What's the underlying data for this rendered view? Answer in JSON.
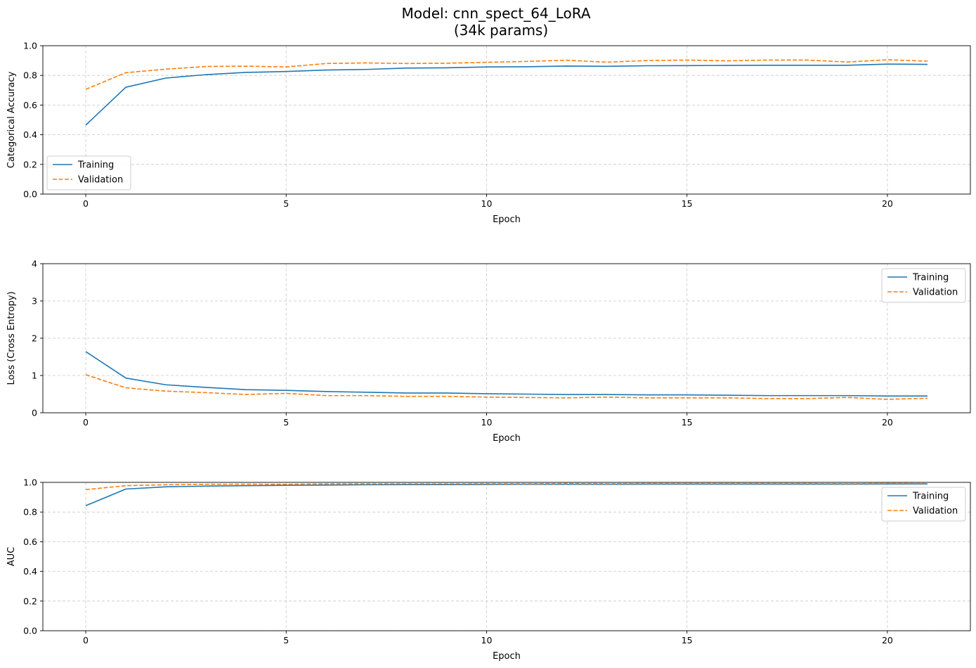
{
  "figure": {
    "title_line1": "Model: cnn_spect_64_LoRA",
    "title_line2": "(34k params)"
  },
  "chart_data": [
    {
      "type": "line",
      "xlabel": "Epoch",
      "ylabel": "Categorical Accuracy",
      "xlim": [
        -1.07,
        22.07
      ],
      "ylim": [
        0,
        1
      ],
      "xticks": [
        0,
        5,
        10,
        15,
        20
      ],
      "yticks": [
        0.0,
        0.2,
        0.4,
        0.6,
        0.8,
        1.0
      ],
      "ytick_labels": [
        "0.0",
        "0.2",
        "0.4",
        "0.6",
        "0.8",
        "1.0"
      ],
      "grid": true,
      "legend_position": "lower-left",
      "x": [
        0,
        1,
        2,
        3,
        4,
        5,
        6,
        7,
        8,
        9,
        10,
        11,
        12,
        13,
        14,
        15,
        16,
        17,
        18,
        19,
        20,
        21
      ],
      "series": [
        {
          "name": "Training",
          "color": "#1f77b4",
          "style": "solid",
          "values": [
            0.465,
            0.72,
            0.782,
            0.805,
            0.82,
            0.826,
            0.836,
            0.84,
            0.849,
            0.851,
            0.857,
            0.858,
            0.863,
            0.861,
            0.865,
            0.866,
            0.867,
            0.868,
            0.868,
            0.868,
            0.876,
            0.874
          ]
        },
        {
          "name": "Validation",
          "color": "#ff7f0e",
          "style": "dashed",
          "values": [
            0.706,
            0.818,
            0.842,
            0.86,
            0.862,
            0.857,
            0.88,
            0.884,
            0.88,
            0.882,
            0.888,
            0.894,
            0.902,
            0.889,
            0.9,
            0.903,
            0.898,
            0.903,
            0.903,
            0.89,
            0.905,
            0.896
          ]
        }
      ]
    },
    {
      "type": "line",
      "xlabel": "Epoch",
      "ylabel": "Loss (Cross Entropy)",
      "xlim": [
        -1.07,
        22.07
      ],
      "ylim": [
        0,
        4
      ],
      "xticks": [
        0,
        5,
        10,
        15,
        20
      ],
      "yticks": [
        0,
        1,
        2,
        3,
        4
      ],
      "ytick_labels": [
        "0",
        "1",
        "2",
        "3",
        "4"
      ],
      "grid": true,
      "legend_position": "upper-right",
      "x": [
        0,
        1,
        2,
        3,
        4,
        5,
        6,
        7,
        8,
        9,
        10,
        11,
        12,
        13,
        14,
        15,
        16,
        17,
        18,
        19,
        20,
        21
      ],
      "series": [
        {
          "name": "Training",
          "color": "#1f77b4",
          "style": "solid",
          "values": [
            1.64,
            0.93,
            0.75,
            0.68,
            0.62,
            0.6,
            0.57,
            0.55,
            0.53,
            0.53,
            0.51,
            0.5,
            0.49,
            0.49,
            0.48,
            0.48,
            0.47,
            0.46,
            0.46,
            0.46,
            0.45,
            0.45
          ]
        },
        {
          "name": "Validation",
          "color": "#ff7f0e",
          "style": "dashed",
          "values": [
            1.02,
            0.67,
            0.58,
            0.54,
            0.49,
            0.52,
            0.46,
            0.46,
            0.44,
            0.44,
            0.42,
            0.41,
            0.4,
            0.42,
            0.4,
            0.4,
            0.4,
            0.38,
            0.38,
            0.41,
            0.36,
            0.39
          ]
        }
      ]
    },
    {
      "type": "line",
      "xlabel": "Epoch",
      "ylabel": "AUC",
      "xlim": [
        -1.07,
        22.07
      ],
      "ylim": [
        0,
        1
      ],
      "xticks": [
        0,
        5,
        10,
        15,
        20
      ],
      "yticks": [
        0.0,
        0.2,
        0.4,
        0.6,
        0.8,
        1.0
      ],
      "ytick_labels": [
        "0.0",
        "0.2",
        "0.4",
        "0.6",
        "0.8",
        "1.0"
      ],
      "grid": true,
      "legend_position": "upper-right",
      "x": [
        0,
        1,
        2,
        3,
        4,
        5,
        6,
        7,
        8,
        9,
        10,
        11,
        12,
        13,
        14,
        15,
        16,
        17,
        18,
        19,
        20,
        21
      ],
      "series": [
        {
          "name": "Training",
          "color": "#1f77b4",
          "style": "solid",
          "values": [
            0.843,
            0.955,
            0.97,
            0.975,
            0.978,
            0.98,
            0.982,
            0.984,
            0.985,
            0.985,
            0.986,
            0.987,
            0.987,
            0.987,
            0.988,
            0.988,
            0.988,
            0.988,
            0.988,
            0.988,
            0.989,
            0.989
          ]
        },
        {
          "name": "Validation",
          "color": "#ff7f0e",
          "style": "dashed",
          "values": [
            0.951,
            0.978,
            0.984,
            0.987,
            0.988,
            0.987,
            0.99,
            0.99,
            0.99,
            0.99,
            0.991,
            0.991,
            0.992,
            0.991,
            0.992,
            0.992,
            0.992,
            0.992,
            0.992,
            0.991,
            0.993,
            0.992
          ]
        }
      ]
    }
  ]
}
